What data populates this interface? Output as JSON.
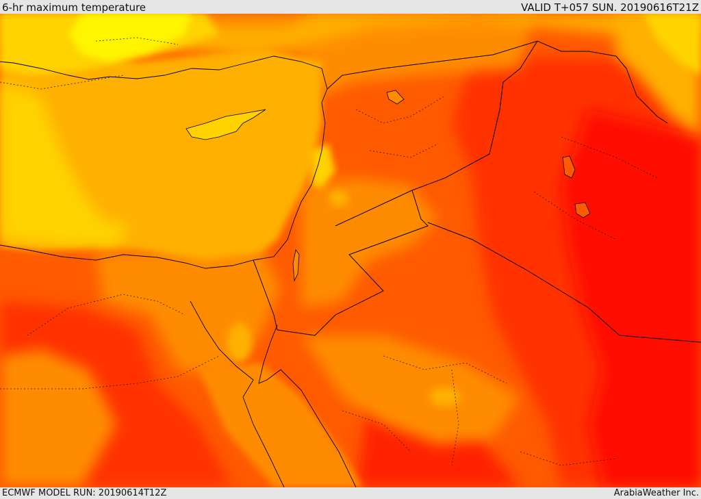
{
  "header": {
    "title": "6-hr maximum temperature",
    "valid": "VALID T+057 SUN. 20190616T21Z"
  },
  "footer": {
    "model_run": "ECMWF MODEL RUN: 20190614T12Z",
    "credit": "ArabiaWeather Inc."
  },
  "colors": {
    "pale_yellow": "#fff500",
    "yellow": "#ffd200",
    "light_orange": "#ffb000",
    "orange": "#ff8c00",
    "dark_orange": "#ff5a00",
    "red_orange": "#ff3000",
    "red": "#ff0000",
    "border": "#000000"
  }
}
